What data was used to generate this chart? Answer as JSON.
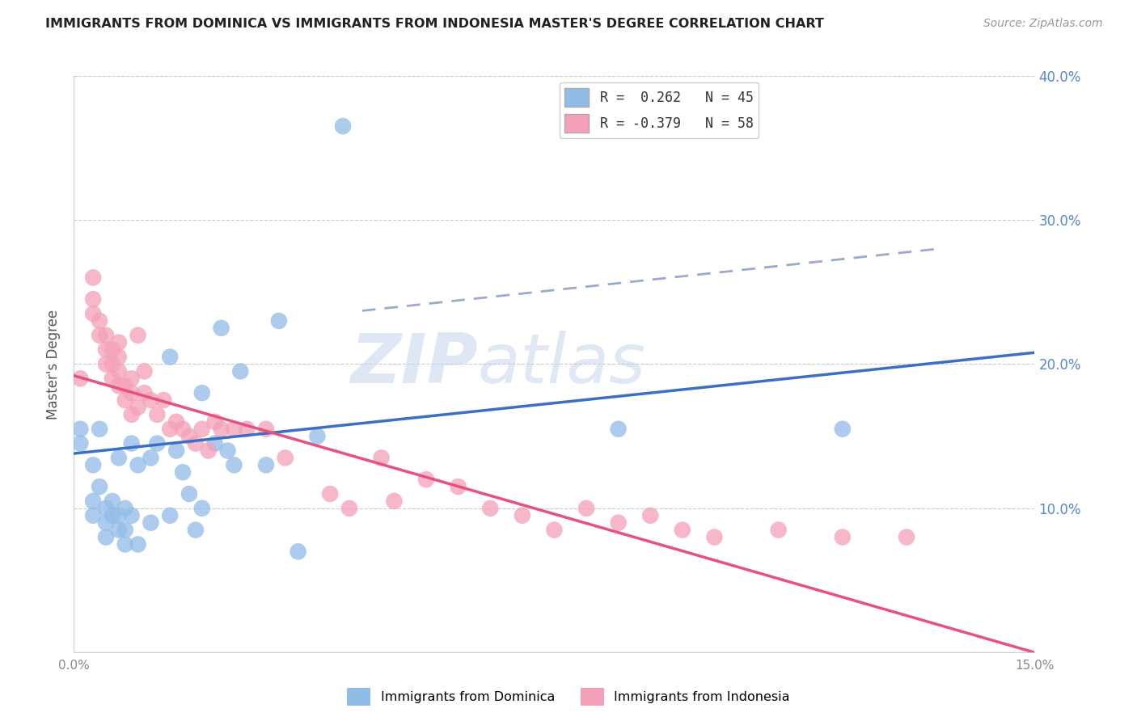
{
  "title": "IMMIGRANTS FROM DOMINICA VS IMMIGRANTS FROM INDONESIA MASTER'S DEGREE CORRELATION CHART",
  "source": "Source: ZipAtlas.com",
  "ylabel": "Master's Degree",
  "dominica_color": "#92bce8",
  "indonesia_color": "#f4a0b8",
  "dominica_line_color": "#3a6fc4",
  "indonesia_line_color": "#e85080",
  "dashed_line_color": "#99aacc",
  "watermark_zip": "ZIP",
  "watermark_atlas": "atlas",
  "xlim": [
    0.0,
    0.15
  ],
  "ylim": [
    0.0,
    0.4
  ],
  "dominica_points_x": [
    0.001,
    0.001,
    0.003,
    0.003,
    0.003,
    0.004,
    0.004,
    0.005,
    0.005,
    0.005,
    0.006,
    0.006,
    0.007,
    0.007,
    0.007,
    0.008,
    0.008,
    0.008,
    0.009,
    0.009,
    0.01,
    0.01,
    0.012,
    0.012,
    0.013,
    0.015,
    0.015,
    0.016,
    0.017,
    0.018,
    0.019,
    0.02,
    0.02,
    0.022,
    0.023,
    0.024,
    0.025,
    0.026,
    0.03,
    0.032,
    0.035,
    0.038,
    0.042,
    0.085,
    0.12
  ],
  "dominica_points_y": [
    0.145,
    0.155,
    0.095,
    0.105,
    0.13,
    0.115,
    0.155,
    0.08,
    0.09,
    0.1,
    0.095,
    0.105,
    0.085,
    0.095,
    0.135,
    0.075,
    0.085,
    0.1,
    0.095,
    0.145,
    0.075,
    0.13,
    0.09,
    0.135,
    0.145,
    0.095,
    0.205,
    0.14,
    0.125,
    0.11,
    0.085,
    0.1,
    0.18,
    0.145,
    0.225,
    0.14,
    0.13,
    0.195,
    0.13,
    0.23,
    0.07,
    0.15,
    0.365,
    0.155,
    0.155
  ],
  "indonesia_points_x": [
    0.001,
    0.003,
    0.003,
    0.003,
    0.004,
    0.004,
    0.005,
    0.005,
    0.005,
    0.006,
    0.006,
    0.006,
    0.007,
    0.007,
    0.007,
    0.007,
    0.008,
    0.008,
    0.009,
    0.009,
    0.009,
    0.01,
    0.01,
    0.011,
    0.011,
    0.012,
    0.013,
    0.014,
    0.015,
    0.016,
    0.017,
    0.018,
    0.019,
    0.02,
    0.021,
    0.022,
    0.023,
    0.025,
    0.027,
    0.03,
    0.033,
    0.04,
    0.043,
    0.048,
    0.05,
    0.055,
    0.06,
    0.065,
    0.07,
    0.075,
    0.08,
    0.085,
    0.09,
    0.095,
    0.1,
    0.11,
    0.12,
    0.13
  ],
  "indonesia_points_y": [
    0.19,
    0.235,
    0.245,
    0.26,
    0.22,
    0.23,
    0.2,
    0.21,
    0.22,
    0.19,
    0.2,
    0.21,
    0.185,
    0.195,
    0.205,
    0.215,
    0.175,
    0.185,
    0.165,
    0.18,
    0.19,
    0.17,
    0.22,
    0.18,
    0.195,
    0.175,
    0.165,
    0.175,
    0.155,
    0.16,
    0.155,
    0.15,
    0.145,
    0.155,
    0.14,
    0.16,
    0.155,
    0.155,
    0.155,
    0.155,
    0.135,
    0.11,
    0.1,
    0.135,
    0.105,
    0.12,
    0.115,
    0.1,
    0.095,
    0.085,
    0.1,
    0.09,
    0.095,
    0.085,
    0.08,
    0.085,
    0.08,
    0.08
  ],
  "dominica_line_x0": 0.0,
  "dominica_line_y0": 0.138,
  "dominica_line_x1": 0.15,
  "dominica_line_y1": 0.208,
  "indonesia_line_x0": 0.0,
  "indonesia_line_y0": 0.192,
  "indonesia_line_x1": 0.15,
  "indonesia_line_y1": 0.0,
  "dash_line_x0": 0.045,
  "dash_line_y0": 0.237,
  "dash_line_x1": 0.135,
  "dash_line_y1": 0.28
}
